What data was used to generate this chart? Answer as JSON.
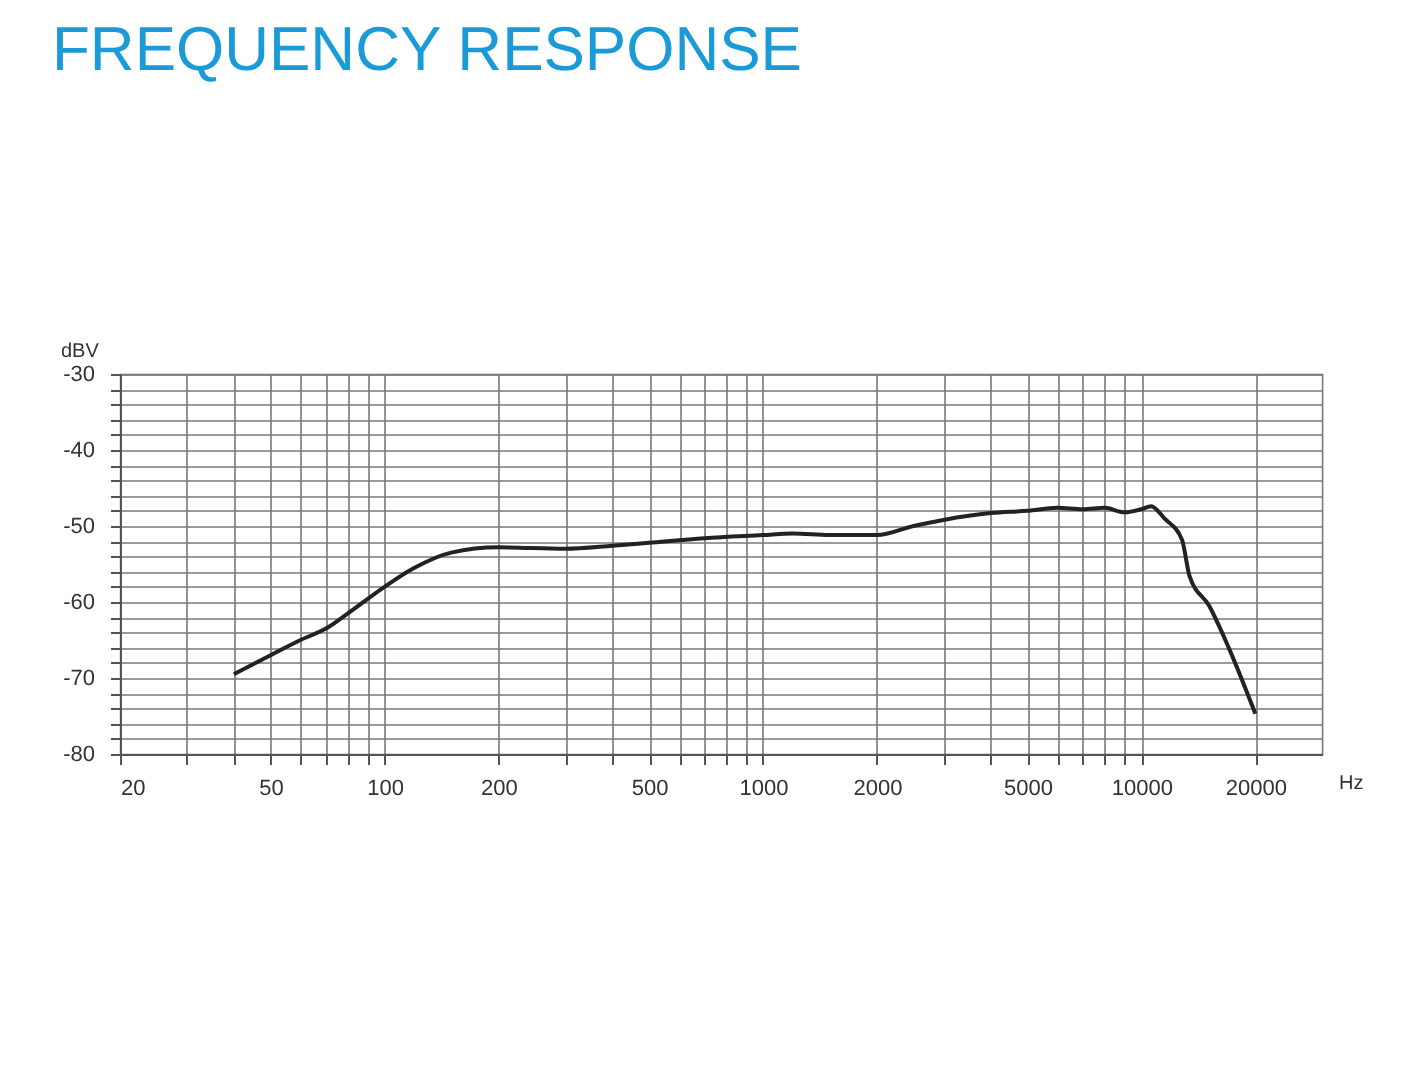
{
  "chart_data": {
    "type": "line",
    "title": "FREQUENCY RESPONSE",
    "xlabel": "Hz",
    "ylabel": "dBV",
    "log": "x",
    "grid": true,
    "xlim": [
      20,
      30000
    ],
    "ylim": [
      -80,
      -30
    ],
    "xticks": [
      20,
      {
        "value": 30,
        "label": null
      },
      {
        "value": 40,
        "label": null
      },
      50,
      {
        "value": 60,
        "label": null
      },
      {
        "value": 70,
        "label": null
      },
      {
        "value": 80,
        "label": null
      },
      {
        "value": 90,
        "label": null
      },
      100,
      200,
      {
        "value": 300,
        "label": null
      },
      {
        "value": 400,
        "label": null
      },
      500,
      {
        "value": 600,
        "label": null
      },
      {
        "value": 700,
        "label": null
      },
      {
        "value": 800,
        "label": null
      },
      {
        "value": 900,
        "label": null
      },
      1000,
      2000,
      {
        "value": 3000,
        "label": null
      },
      {
        "value": 4000,
        "label": null
      },
      5000,
      {
        "value": 6000,
        "label": null
      },
      {
        "value": 7000,
        "label": null
      },
      {
        "value": 8000,
        "label": null
      },
      {
        "value": 9000,
        "label": null
      },
      10000,
      20000
    ],
    "yticks": [
      -80,
      {
        "value": -78,
        "label": null
      },
      {
        "value": -76,
        "label": null
      },
      {
        "value": -74,
        "label": null
      },
      {
        "value": -72,
        "label": null
      },
      -70,
      {
        "value": -68,
        "label": null
      },
      {
        "value": -66,
        "label": null
      },
      {
        "value": -64,
        "label": null
      },
      {
        "value": -62,
        "label": null
      },
      -60,
      {
        "value": -58,
        "label": null
      },
      {
        "value": -56,
        "label": null
      },
      {
        "value": -54,
        "label": null
      },
      {
        "value": -52,
        "label": null
      },
      -50,
      {
        "value": -48,
        "label": null
      },
      {
        "value": -46,
        "label": null
      },
      {
        "value": -44,
        "label": null
      },
      {
        "value": -42,
        "label": null
      },
      -40,
      {
        "value": -38,
        "label": null
      },
      {
        "value": -36,
        "label": null
      },
      {
        "value": -34,
        "label": null
      },
      {
        "value": -32,
        "label": null
      },
      -30
    ],
    "series": [
      {
        "color": "#222222",
        "x": [
          40,
          50,
          60,
          70,
          80,
          100,
          120,
          150,
          200,
          300,
          400,
          500,
          700,
          1000,
          1200,
          1500,
          2000,
          2500,
          3000,
          4000,
          5000,
          6000,
          7000,
          8000,
          9000,
          10000,
          10600,
          11500,
          12800,
          13400,
          15100,
          17000,
          20000
        ],
        "values": [
          -69.5,
          -67,
          -65,
          -63.5,
          -61.5,
          -58,
          -55.5,
          -53.5,
          -52.8,
          -53,
          -52.6,
          -52.2,
          -51.6,
          -51.2,
          -51,
          -51.2,
          -51.2,
          -50,
          -49.2,
          -48.3,
          -48,
          -47.6,
          -47.8,
          -47.6,
          -48.2,
          -47.8,
          -47.4,
          -49,
          -51.8,
          -56.6,
          -60.5,
          -66,
          -74.7
        ]
      }
    ]
  }
}
